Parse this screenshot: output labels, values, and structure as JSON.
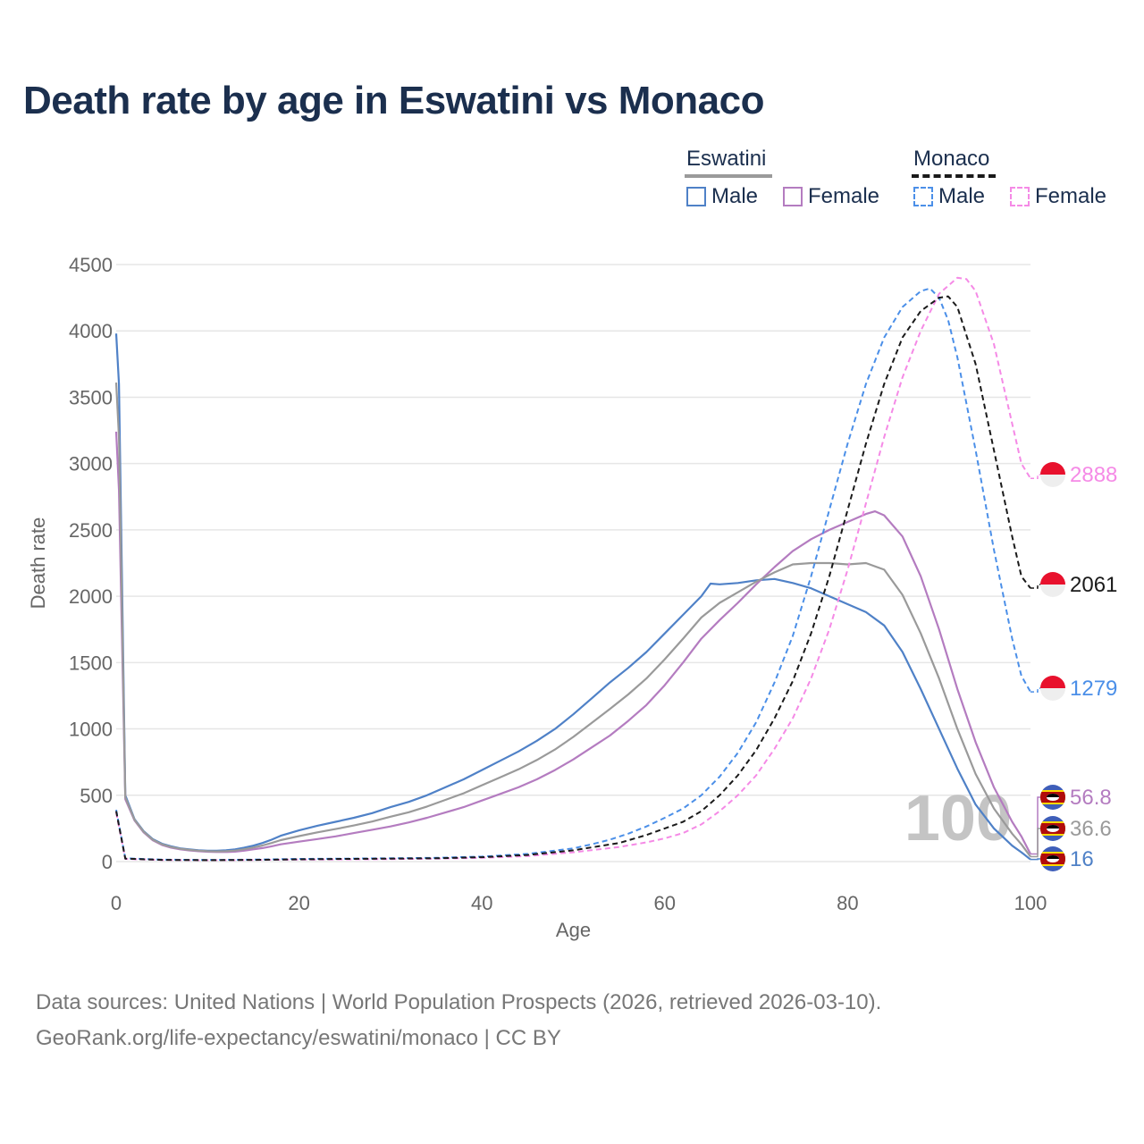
{
  "title": "Death rate by age in Eswatini vs Monaco",
  "legend": {
    "groups": [
      {
        "name": "Eswatini",
        "color": "#9a9a9a",
        "dashed": false,
        "items": [
          {
            "label": "Male",
            "color": "#4f81c7"
          },
          {
            "label": "Female",
            "color": "#b47cc0"
          }
        ]
      },
      {
        "name": "Monaco",
        "color": "#1a1a1a",
        "dashed": true,
        "items": [
          {
            "label": "Male",
            "color": "#4b8fe8"
          },
          {
            "label": "Female",
            "color": "#f58ae6"
          }
        ]
      }
    ]
  },
  "watermark_age": "100",
  "footer": {
    "line1": "Data sources: United Nations | World Population Prospects (2026, retrieved 2026-03-10).",
    "line2": "GeoRank.org/life-expectancy/eswatini/monaco | CC BY"
  },
  "chart_data": {
    "type": "line",
    "xlabel": "Age",
    "ylabel": "Death rate",
    "xlim": [
      0,
      100
    ],
    "ylim": [
      0,
      4500
    ],
    "xticks": [
      0,
      20,
      40,
      60,
      80,
      100
    ],
    "yticks": [
      0,
      500,
      1000,
      1500,
      2000,
      2500,
      3000,
      3500,
      4000,
      4500
    ],
    "grid": true,
    "series": [
      {
        "name": "Eswatini Male",
        "color": "#4f81c7",
        "dashed": false,
        "end_label": "16",
        "flag": "eswatini",
        "points": [
          [
            0,
            3980
          ],
          [
            0.3,
            3600
          ],
          [
            1,
            500
          ],
          [
            2,
            320
          ],
          [
            3,
            230
          ],
          [
            4,
            170
          ],
          [
            5,
            135
          ],
          [
            6,
            115
          ],
          [
            7,
            100
          ],
          [
            8,
            92
          ],
          [
            9,
            85
          ],
          [
            10,
            82
          ],
          [
            11,
            82
          ],
          [
            12,
            85
          ],
          [
            13,
            92
          ],
          [
            14,
            105
          ],
          [
            15,
            120
          ],
          [
            16,
            140
          ],
          [
            17,
            165
          ],
          [
            18,
            195
          ],
          [
            20,
            235
          ],
          [
            22,
            270
          ],
          [
            24,
            300
          ],
          [
            26,
            330
          ],
          [
            28,
            365
          ],
          [
            30,
            410
          ],
          [
            32,
            450
          ],
          [
            34,
            500
          ],
          [
            36,
            560
          ],
          [
            38,
            620
          ],
          [
            40,
            690
          ],
          [
            42,
            760
          ],
          [
            44,
            830
          ],
          [
            46,
            910
          ],
          [
            48,
            1000
          ],
          [
            50,
            1110
          ],
          [
            52,
            1230
          ],
          [
            54,
            1350
          ],
          [
            56,
            1460
          ],
          [
            58,
            1580
          ],
          [
            60,
            1720
          ],
          [
            62,
            1860
          ],
          [
            64,
            2000
          ],
          [
            65,
            2095
          ],
          [
            66,
            2090
          ],
          [
            68,
            2100
          ],
          [
            70,
            2120
          ],
          [
            72,
            2130
          ],
          [
            74,
            2100
          ],
          [
            76,
            2060
          ],
          [
            78,
            2000
          ],
          [
            80,
            1940
          ],
          [
            82,
            1880
          ],
          [
            84,
            1780
          ],
          [
            86,
            1580
          ],
          [
            88,
            1300
          ],
          [
            90,
            1000
          ],
          [
            92,
            700
          ],
          [
            94,
            430
          ],
          [
            96,
            250
          ],
          [
            98,
            120
          ],
          [
            99,
            70
          ],
          [
            100,
            16
          ]
        ]
      },
      {
        "name": "Eswatini Female",
        "color": "#b47cc0",
        "dashed": false,
        "end_label": "56.8",
        "flag": "eswatini",
        "points": [
          [
            0,
            3240
          ],
          [
            0.3,
            2800
          ],
          [
            1,
            470
          ],
          [
            2,
            310
          ],
          [
            3,
            220
          ],
          [
            4,
            160
          ],
          [
            5,
            125
          ],
          [
            6,
            105
          ],
          [
            7,
            92
          ],
          [
            8,
            84
          ],
          [
            9,
            78
          ],
          [
            10,
            74
          ],
          [
            11,
            72
          ],
          [
            12,
            72
          ],
          [
            13,
            75
          ],
          [
            14,
            82
          ],
          [
            15,
            92
          ],
          [
            16,
            102
          ],
          [
            17,
            115
          ],
          [
            18,
            130
          ],
          [
            20,
            150
          ],
          [
            22,
            170
          ],
          [
            24,
            190
          ],
          [
            26,
            215
          ],
          [
            28,
            240
          ],
          [
            30,
            265
          ],
          [
            32,
            295
          ],
          [
            34,
            330
          ],
          [
            36,
            370
          ],
          [
            38,
            410
          ],
          [
            40,
            460
          ],
          [
            42,
            510
          ],
          [
            44,
            560
          ],
          [
            46,
            620
          ],
          [
            48,
            690
          ],
          [
            50,
            770
          ],
          [
            52,
            860
          ],
          [
            54,
            950
          ],
          [
            56,
            1060
          ],
          [
            58,
            1180
          ],
          [
            60,
            1330
          ],
          [
            62,
            1500
          ],
          [
            64,
            1680
          ],
          [
            66,
            1820
          ],
          [
            68,
            1950
          ],
          [
            70,
            2090
          ],
          [
            72,
            2220
          ],
          [
            74,
            2340
          ],
          [
            76,
            2430
          ],
          [
            78,
            2500
          ],
          [
            80,
            2560
          ],
          [
            82,
            2620
          ],
          [
            83,
            2640
          ],
          [
            84,
            2610
          ],
          [
            86,
            2450
          ],
          [
            88,
            2150
          ],
          [
            90,
            1750
          ],
          [
            92,
            1300
          ],
          [
            94,
            900
          ],
          [
            96,
            560
          ],
          [
            98,
            300
          ],
          [
            99,
            190
          ],
          [
            100,
            57
          ]
        ]
      },
      {
        "name": "Eswatini Both",
        "color": "#9a9a9a",
        "dashed": false,
        "end_label": "36.6",
        "flag": "eswatini",
        "points": [
          [
            0,
            3610
          ],
          [
            0.3,
            3200
          ],
          [
            1,
            485
          ],
          [
            2,
            315
          ],
          [
            3,
            225
          ],
          [
            4,
            165
          ],
          [
            5,
            130
          ],
          [
            6,
            110
          ],
          [
            7,
            96
          ],
          [
            8,
            88
          ],
          [
            9,
            82
          ],
          [
            10,
            78
          ],
          [
            11,
            77
          ],
          [
            12,
            78
          ],
          [
            13,
            83
          ],
          [
            14,
            93
          ],
          [
            15,
            106
          ],
          [
            16,
            121
          ],
          [
            17,
            140
          ],
          [
            18,
            162
          ],
          [
            20,
            192
          ],
          [
            22,
            220
          ],
          [
            24,
            245
          ],
          [
            26,
            272
          ],
          [
            28,
            302
          ],
          [
            30,
            338
          ],
          [
            32,
            372
          ],
          [
            34,
            415
          ],
          [
            36,
            465
          ],
          [
            38,
            515
          ],
          [
            40,
            575
          ],
          [
            42,
            635
          ],
          [
            44,
            695
          ],
          [
            46,
            765
          ],
          [
            48,
            845
          ],
          [
            50,
            940
          ],
          [
            52,
            1045
          ],
          [
            54,
            1150
          ],
          [
            56,
            1260
          ],
          [
            58,
            1380
          ],
          [
            60,
            1525
          ],
          [
            62,
            1680
          ],
          [
            64,
            1840
          ],
          [
            66,
            1950
          ],
          [
            68,
            2030
          ],
          [
            70,
            2110
          ],
          [
            72,
            2180
          ],
          [
            74,
            2240
          ],
          [
            76,
            2250
          ],
          [
            78,
            2250
          ],
          [
            80,
            2240
          ],
          [
            82,
            2250
          ],
          [
            84,
            2200
          ],
          [
            86,
            2010
          ],
          [
            88,
            1720
          ],
          [
            90,
            1380
          ],
          [
            92,
            1000
          ],
          [
            94,
            660
          ],
          [
            96,
            400
          ],
          [
            98,
            210
          ],
          [
            99,
            130
          ],
          [
            100,
            37
          ]
        ]
      },
      {
        "name": "Monaco Male",
        "color": "#4b8fe8",
        "dashed": true,
        "end_label": "1279",
        "flag": "monaco",
        "points": [
          [
            0,
            390
          ],
          [
            1,
            25
          ],
          [
            5,
            15
          ],
          [
            10,
            12
          ],
          [
            15,
            15
          ],
          [
            20,
            20
          ],
          [
            25,
            22
          ],
          [
            30,
            25
          ],
          [
            35,
            28
          ],
          [
            40,
            38
          ],
          [
            45,
            58
          ],
          [
            50,
            100
          ],
          [
            52,
            130
          ],
          [
            54,
            165
          ],
          [
            56,
            210
          ],
          [
            58,
            265
          ],
          [
            60,
            330
          ],
          [
            62,
            400
          ],
          [
            64,
            500
          ],
          [
            66,
            640
          ],
          [
            68,
            820
          ],
          [
            70,
            1050
          ],
          [
            72,
            1350
          ],
          [
            74,
            1700
          ],
          [
            76,
            2150
          ],
          [
            78,
            2650
          ],
          [
            80,
            3150
          ],
          [
            82,
            3600
          ],
          [
            84,
            3950
          ],
          [
            86,
            4180
          ],
          [
            88,
            4300
          ],
          [
            89,
            4320
          ],
          [
            90,
            4250
          ],
          [
            91,
            4080
          ],
          [
            92,
            3800
          ],
          [
            94,
            3100
          ],
          [
            96,
            2350
          ],
          [
            98,
            1680
          ],
          [
            99,
            1400
          ],
          [
            100,
            1279
          ]
        ]
      },
      {
        "name": "Monaco Female",
        "color": "#f58ae6",
        "dashed": true,
        "end_label": "2888",
        "flag": "monaco",
        "points": [
          [
            0,
            370
          ],
          [
            1,
            20
          ],
          [
            5,
            12
          ],
          [
            10,
            10
          ],
          [
            15,
            12
          ],
          [
            20,
            15
          ],
          [
            25,
            17
          ],
          [
            30,
            19
          ],
          [
            35,
            22
          ],
          [
            40,
            28
          ],
          [
            45,
            42
          ],
          [
            50,
            70
          ],
          [
            55,
            110
          ],
          [
            58,
            145
          ],
          [
            60,
            175
          ],
          [
            62,
            215
          ],
          [
            64,
            280
          ],
          [
            66,
            380
          ],
          [
            68,
            500
          ],
          [
            70,
            650
          ],
          [
            72,
            850
          ],
          [
            74,
            1080
          ],
          [
            76,
            1380
          ],
          [
            78,
            1750
          ],
          [
            80,
            2200
          ],
          [
            82,
            2700
          ],
          [
            84,
            3200
          ],
          [
            86,
            3650
          ],
          [
            88,
            4000
          ],
          [
            90,
            4280
          ],
          [
            92,
            4400
          ],
          [
            93,
            4390
          ],
          [
            94,
            4300
          ],
          [
            96,
            3900
          ],
          [
            98,
            3300
          ],
          [
            99,
            3000
          ],
          [
            100,
            2888
          ]
        ]
      },
      {
        "name": "Monaco Both",
        "color": "#1a1a1a",
        "dashed": true,
        "end_label": "2061",
        "flag": "monaco",
        "points": [
          [
            0,
            380
          ],
          [
            1,
            22
          ],
          [
            5,
            13
          ],
          [
            10,
            11
          ],
          [
            15,
            13
          ],
          [
            20,
            17
          ],
          [
            25,
            20
          ],
          [
            30,
            22
          ],
          [
            35,
            25
          ],
          [
            40,
            33
          ],
          [
            45,
            50
          ],
          [
            50,
            85
          ],
          [
            55,
            140
          ],
          [
            58,
            200
          ],
          [
            60,
            250
          ],
          [
            62,
            300
          ],
          [
            64,
            380
          ],
          [
            66,
            500
          ],
          [
            68,
            650
          ],
          [
            70,
            840
          ],
          [
            72,
            1080
          ],
          [
            74,
            1360
          ],
          [
            76,
            1720
          ],
          [
            78,
            2150
          ],
          [
            80,
            2650
          ],
          [
            82,
            3150
          ],
          [
            84,
            3600
          ],
          [
            86,
            3950
          ],
          [
            88,
            4150
          ],
          [
            90,
            4250
          ],
          [
            91,
            4260
          ],
          [
            92,
            4180
          ],
          [
            94,
            3750
          ],
          [
            96,
            3100
          ],
          [
            98,
            2450
          ],
          [
            99,
            2150
          ],
          [
            100,
            2061
          ]
        ]
      }
    ]
  }
}
